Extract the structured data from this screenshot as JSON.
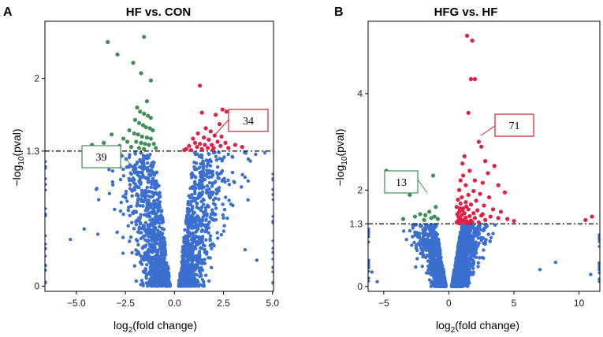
{
  "chart_data": [
    {
      "type": "scatter",
      "panel_label": "A",
      "title": "HF vs. CON",
      "xlabel": "log2(fold change)",
      "ylabel": "−log10(pval)",
      "xlim": [
        -6.6,
        5.05
      ],
      "ylim": [
        -0.05,
        2.55
      ],
      "xticks": [
        -5.0,
        -2.5,
        0.0,
        2.5,
        5.0
      ],
      "xtick_labels": [
        "−5.0",
        "−2.5",
        "0.0",
        "2.5",
        "5.0"
      ],
      "yticks": [
        0,
        1.3,
        2
      ],
      "ytick_labels": [
        "0",
        "1.3",
        "2"
      ],
      "threshold": 1.3,
      "grid": false,
      "colors": {
        "not_significant": "#3b6fcf",
        "down": "#3e8e55",
        "up": "#e02044"
      },
      "annotations": [
        {
          "label": "39",
          "color": "#3e8e55",
          "side": "left"
        },
        {
          "label": "34",
          "color": "#d0202a",
          "side": "right"
        }
      ],
      "series": [
        {
          "name": "down",
          "points": [
            [
              -3.4,
              2.35
            ],
            [
              -2.9,
              2.23
            ],
            [
              -2.1,
              2.15
            ],
            [
              -1.7,
              2.05
            ],
            [
              -1.2,
              1.98
            ],
            [
              -1.55,
              2.4
            ],
            [
              -1.4,
              1.78
            ],
            [
              -1.9,
              1.72
            ],
            [
              -1.75,
              1.68
            ],
            [
              -1.55,
              1.66
            ],
            [
              -1.35,
              1.64
            ],
            [
              -1.2,
              1.62
            ],
            [
              -2.0,
              1.6
            ],
            [
              -1.8,
              1.57
            ],
            [
              -1.6,
              1.55
            ],
            [
              -1.45,
              1.53
            ],
            [
              -1.25,
              1.52
            ],
            [
              -1.1,
              1.5
            ],
            [
              -2.3,
              1.5
            ],
            [
              -2.05,
              1.47
            ],
            [
              -1.85,
              1.46
            ],
            [
              -1.65,
              1.44
            ],
            [
              -1.4,
              1.43
            ],
            [
              -1.2,
              1.42
            ],
            [
              -3.2,
              1.46
            ],
            [
              -2.6,
              1.42
            ],
            [
              -2.4,
              1.39
            ],
            [
              -1.95,
              1.39
            ],
            [
              -1.7,
              1.38
            ],
            [
              -1.5,
              1.37
            ],
            [
              -1.3,
              1.36
            ],
            [
              -1.05,
              1.37
            ],
            [
              -3.6,
              1.38
            ],
            [
              -2.8,
              1.35
            ],
            [
              -2.2,
              1.34
            ],
            [
              -1.8,
              1.33
            ],
            [
              -1.55,
              1.32
            ],
            [
              -0.95,
              1.33
            ],
            [
              -4.2,
              1.36
            ]
          ]
        },
        {
          "name": "up",
          "points": [
            [
              1.3,
              1.93
            ],
            [
              2.45,
              1.7
            ],
            [
              2.65,
              1.68
            ],
            [
              2.1,
              1.65
            ],
            [
              1.4,
              1.67
            ],
            [
              2.85,
              1.6
            ],
            [
              2.3,
              1.56
            ],
            [
              1.6,
              1.52
            ],
            [
              1.85,
              1.49
            ],
            [
              1.2,
              1.47
            ],
            [
              2.05,
              1.45
            ],
            [
              2.4,
              1.44
            ],
            [
              0.95,
              1.42
            ],
            [
              1.5,
              1.43
            ],
            [
              1.75,
              1.41
            ],
            [
              2.2,
              1.39
            ],
            [
              2.6,
              1.38
            ],
            [
              1.05,
              1.38
            ],
            [
              1.3,
              1.37
            ],
            [
              1.55,
              1.36
            ],
            [
              1.9,
              1.36
            ],
            [
              2.35,
              1.35
            ],
            [
              0.75,
              1.35
            ],
            [
              1.15,
              1.34
            ],
            [
              1.7,
              1.33
            ],
            [
              2.0,
              1.33
            ],
            [
              0.6,
              1.32
            ],
            [
              2.75,
              1.33
            ],
            [
              1.4,
              1.32
            ],
            [
              0.85,
              1.31
            ],
            [
              3.1,
              1.36
            ],
            [
              3.45,
              1.34
            ],
            [
              0.5,
              1.31
            ],
            [
              1.95,
              1.31
            ]
          ]
        }
      ]
    },
    {
      "type": "scatter",
      "panel_label": "B",
      "title": "HFG vs. HF",
      "xlabel": "log2(fold change)",
      "ylabel": "−log10(pval)",
      "xlim": [
        -6.2,
        11.6
      ],
      "ylim": [
        -0.1,
        5.5
      ],
      "xticks": [
        -5,
        0,
        5,
        10
      ],
      "xtick_labels": [
        "−5",
        "0",
        "5",
        "10"
      ],
      "yticks": [
        0,
        1.3,
        2,
        4
      ],
      "ytick_labels": [
        "0",
        "1.3",
        "2",
        "4"
      ],
      "threshold": 1.3,
      "grid": false,
      "colors": {
        "not_significant": "#3b6fcf",
        "down": "#3e8e55",
        "up": "#e02044"
      },
      "annotations": [
        {
          "label": "13",
          "color": "#3e8e55",
          "side": "left"
        },
        {
          "label": "71",
          "color": "#d0202a",
          "side": "right"
        }
      ],
      "series": [
        {
          "name": "down",
          "points": [
            [
              -4.8,
              2.4
            ],
            [
              -3.0,
              1.9
            ],
            [
              -1.2,
              2.3
            ],
            [
              -1.0,
              1.65
            ],
            [
              -1.5,
              1.55
            ],
            [
              -2.2,
              1.5
            ],
            [
              -1.8,
              1.48
            ],
            [
              -1.1,
              1.45
            ],
            [
              -2.6,
              1.45
            ],
            [
              -1.35,
              1.42
            ],
            [
              -0.85,
              1.4
            ],
            [
              -1.9,
              1.38
            ],
            [
              -3.5,
              1.4
            ]
          ]
        },
        {
          "name": "up",
          "points": [
            [
              1.4,
              5.2
            ],
            [
              1.8,
              5.1
            ],
            [
              1.7,
              4.3
            ],
            [
              2.0,
              4.3
            ],
            [
              1.5,
              3.6
            ],
            [
              2.3,
              3.0
            ],
            [
              1.2,
              2.7
            ],
            [
              2.5,
              2.9
            ],
            [
              2.8,
              2.6
            ],
            [
              1.05,
              2.55
            ],
            [
              3.5,
              2.5
            ],
            [
              3.0,
              2.35
            ],
            [
              1.6,
              2.4
            ],
            [
              1.1,
              2.3
            ],
            [
              0.9,
              2.2
            ],
            [
              2.0,
              2.2
            ],
            [
              2.6,
              2.15
            ],
            [
              3.8,
              2.1
            ],
            [
              4.3,
              1.95
            ],
            [
              1.3,
              2.1
            ],
            [
              0.8,
              2.0
            ],
            [
              1.9,
              1.98
            ],
            [
              2.4,
              1.92
            ],
            [
              1.5,
              1.9
            ],
            [
              1.0,
              1.85
            ],
            [
              0.7,
              1.8
            ],
            [
              3.1,
              1.85
            ],
            [
              2.1,
              1.78
            ],
            [
              1.3,
              1.75
            ],
            [
              0.9,
              1.72
            ],
            [
              1.7,
              1.7
            ],
            [
              2.7,
              1.68
            ],
            [
              0.6,
              1.65
            ],
            [
              1.1,
              1.62
            ],
            [
              1.5,
              1.6
            ],
            [
              2.2,
              1.58
            ],
            [
              3.4,
              1.6
            ],
            [
              0.8,
              1.55
            ],
            [
              1.2,
              1.52
            ],
            [
              1.9,
              1.52
            ],
            [
              0.65,
              1.5
            ],
            [
              1.0,
              1.48
            ],
            [
              1.6,
              1.46
            ],
            [
              2.5,
              1.47
            ],
            [
              0.75,
              1.44
            ],
            [
              1.3,
              1.43
            ],
            [
              2.0,
              1.42
            ],
            [
              0.9,
              1.4
            ],
            [
              1.15,
              1.38
            ],
            [
              1.7,
              1.37
            ],
            [
              0.7,
              1.36
            ],
            [
              2.8,
              1.38
            ],
            [
              1.4,
              1.35
            ],
            [
              0.95,
              1.34
            ],
            [
              1.8,
              1.34
            ],
            [
              0.6,
              1.33
            ],
            [
              1.25,
              1.32
            ],
            [
              2.3,
              1.33
            ],
            [
              0.8,
              1.31
            ],
            [
              1.55,
              1.31
            ],
            [
              3.8,
              1.42
            ],
            [
              4.5,
              1.4
            ],
            [
              5.0,
              1.36
            ],
            [
              2.6,
              1.5
            ],
            [
              3.2,
              1.45
            ],
            [
              1.05,
              1.58
            ],
            [
              1.35,
              1.66
            ],
            [
              0.85,
              1.62
            ],
            [
              10.5,
              1.38
            ],
            [
              11.0,
              1.45
            ],
            [
              4.0,
              1.55
            ]
          ]
        }
      ]
    }
  ]
}
